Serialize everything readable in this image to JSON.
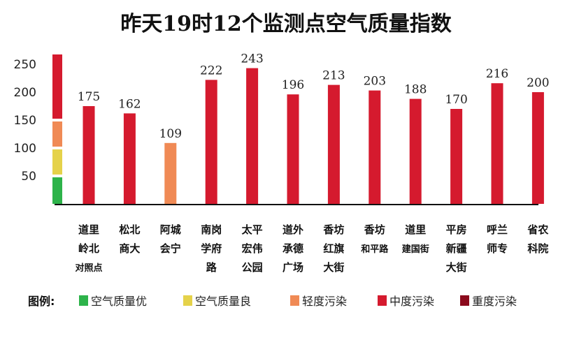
{
  "chart_data": {
    "type": "bar",
    "title": "昨天19时12个监测点空气质量指数",
    "ylim": [
      0,
      270
    ],
    "yticks": [
      50,
      100,
      150,
      200,
      250
    ],
    "categories": [
      [
        "道里",
        "岭北",
        "对照点"
      ],
      [
        "松北",
        "商大"
      ],
      [
        "阿城",
        "会宁"
      ],
      [
        "南岗",
        "学府",
        "路"
      ],
      [
        "太平",
        "宏伟",
        "公园"
      ],
      [
        "道外",
        "承德",
        "广场"
      ],
      [
        "香坊",
        "红旗",
        "大街"
      ],
      [
        "香坊",
        "和平路"
      ],
      [
        "道里",
        "建国街"
      ],
      [
        "平房",
        "新疆",
        "大街"
      ],
      [
        "呼兰",
        "师专"
      ],
      [
        "省农",
        "科院"
      ]
    ],
    "values": [
      175,
      162,
      109,
      222,
      243,
      196,
      213,
      203,
      188,
      170,
      216,
      200
    ],
    "bar_levels": [
      "中度污染",
      "中度污染",
      "轻度污染",
      "中度污染",
      "中度污染",
      "中度污染",
      "中度污染",
      "中度污染",
      "中度污染",
      "中度污染",
      "中度污染",
      "中度污染"
    ],
    "scale_bands": [
      {
        "level": "空气质量优",
        "from": 0,
        "to": 50
      },
      {
        "level": "空气质量良",
        "from": 50,
        "to": 100
      },
      {
        "level": "轻度污染",
        "from": 100,
        "to": 150
      },
      {
        "level": "中度污染",
        "from": 150,
        "to": 270
      }
    ],
    "legend": {
      "title": "图例:",
      "items": [
        {
          "label": "空气质量优",
          "color": "#2db34a"
        },
        {
          "label": "空气质量良",
          "color": "#e5d24a"
        },
        {
          "label": "轻度污染",
          "color": "#f08a55"
        },
        {
          "label": "中度污染",
          "color": "#d51a2e"
        },
        {
          "label": "重度污染",
          "color": "#8b0a1c"
        }
      ]
    },
    "grid": false
  }
}
